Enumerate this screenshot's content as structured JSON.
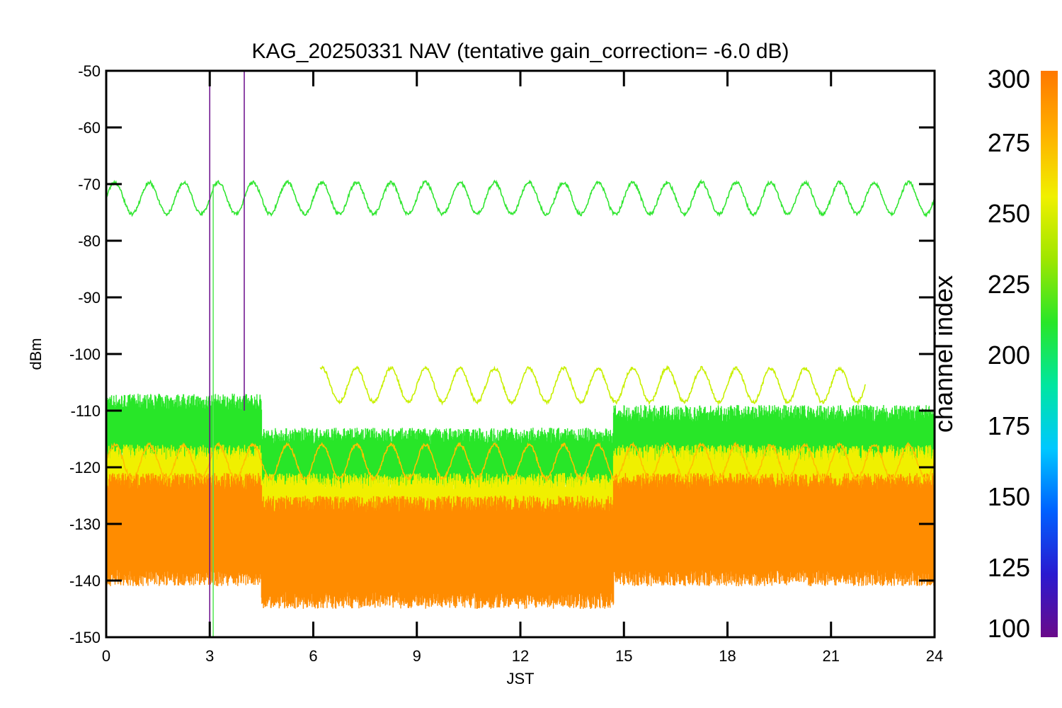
{
  "chart_data": {
    "type": "line",
    "title": "KAG_20250331 NAV (tentative gain_correction= -6.0 dB)",
    "xlabel": "JST",
    "ylabel": "dBm",
    "xlim": [
      0,
      24
    ],
    "ylim": [
      -150,
      -50
    ],
    "x_ticks": [
      "0",
      "3",
      "6",
      "9",
      "12",
      "15",
      "18",
      "21",
      "24"
    ],
    "y_ticks": [
      "-50",
      "-60",
      "-70",
      "-80",
      "-90",
      "-100",
      "-110",
      "-120",
      "-130",
      "-140",
      "-150"
    ],
    "grid": false,
    "colorbar": {
      "label": "channel index",
      "range": [
        100,
        300
      ],
      "ticks": [
        "100",
        "125",
        "150",
        "175",
        "200",
        "225",
        "250",
        "275",
        "300"
      ],
      "colors": [
        "#6a0a8a",
        "#2a1ad0",
        "#0060ff",
        "#00c8ff",
        "#00e6a0",
        "#28e628",
        "#9ee600",
        "#f0f000",
        "#ffb000",
        "#ff7800"
      ]
    },
    "series": [
      {
        "channel": 230,
        "color": "#32e632",
        "x": [
          0,
          24
        ],
        "y_center": -72.5,
        "y_amplitude": 2.8,
        "period_hours": 1.0
      },
      {
        "channel": 262,
        "color": "#c8f000",
        "x": [
          6.2,
          22.0
        ],
        "y_center": -105.5,
        "y_amplitude": 3.0,
        "period_hours": 1.0
      },
      {
        "channel": 285,
        "color": "#ffc000",
        "x": [
          0,
          24
        ],
        "y_center": -119,
        "y_amplitude": 3.0,
        "period_hours": 1.0
      },
      {
        "channel": 230,
        "color": "#28e628",
        "band": true,
        "segments": [
          {
            "x": [
              0,
              4.5
            ],
            "y": [
              -117,
              -110
            ]
          },
          {
            "x": [
              4.5,
              14.7
            ],
            "y": [
              -122,
              -116
            ]
          },
          {
            "x": [
              14.7,
              24
            ],
            "y": [
              -118,
              -112
            ]
          }
        ]
      },
      {
        "channel": 265,
        "color": "#f0f000",
        "band": true,
        "segments": [
          {
            "x": [
              0,
              4.5
            ],
            "y": [
              -128,
              -119
            ]
          },
          {
            "x": [
              4.5,
              14.7
            ],
            "y": [
              -131,
              -124
            ]
          },
          {
            "x": [
              14.7,
              24
            ],
            "y": [
              -128,
              -119
            ]
          }
        ]
      },
      {
        "channel": 290,
        "color": "#ff8c00",
        "band": true,
        "segments": [
          {
            "x": [
              0,
              4.5
            ],
            "y": [
              -138,
              -124
            ]
          },
          {
            "x": [
              4.5,
              14.7
            ],
            "y": [
              -142,
              -128
            ]
          },
          {
            "x": [
              14.7,
              24
            ],
            "y": [
              -138,
              -124
            ]
          }
        ]
      },
      {
        "channel": 110,
        "color": "#6a0a8a",
        "spike": true,
        "x": [
          3.0,
          3.0
        ],
        "y": [
          -150,
          -50
        ]
      },
      {
        "channel": 110,
        "color": "#6a0a8a",
        "spike": true,
        "x": [
          4.0,
          4.0
        ],
        "y": [
          -110,
          -50
        ]
      },
      {
        "channel": 240,
        "color": "#50e650",
        "spike": true,
        "x": [
          3.1,
          3.1
        ],
        "y": [
          -150,
          -70
        ]
      }
    ]
  }
}
